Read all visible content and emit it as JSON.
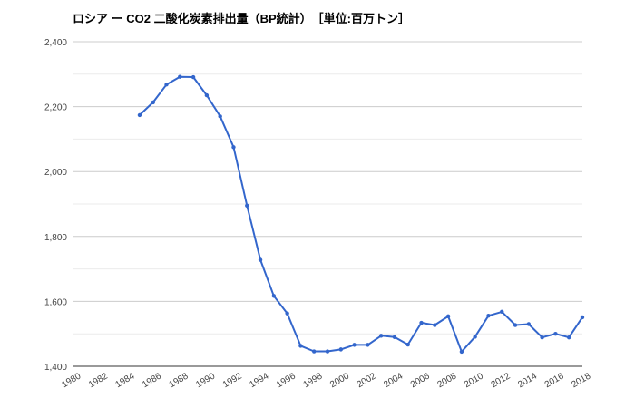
{
  "chart_data": {
    "type": "line",
    "title": "ロシア ー CO2 二酸化炭素排出量（BP統計）　［単位:百万トン］",
    "xlabel": "",
    "ylabel": "",
    "xlim": [
      1980,
      2018
    ],
    "ylim": [
      1400,
      2400
    ],
    "grid": true,
    "legend": "none",
    "x_tick_labels": [
      "1980",
      "1982",
      "1984",
      "1986",
      "1988",
      "1990",
      "1992",
      "1994",
      "1996",
      "1998",
      "2000",
      "2002",
      "2004",
      "2006",
      "2008",
      "2010",
      "2012",
      "2014",
      "2016",
      "2018"
    ],
    "y_tick_labels": [
      "1,400",
      "1,600",
      "1,800",
      "2,000",
      "2,200",
      "2,400"
    ],
    "series": [
      {
        "color": "#3366cc",
        "x": [
          1985,
          1986,
          1987,
          1988,
          1989,
          1990,
          1991,
          1992,
          1993,
          1994,
          1995,
          1996,
          1997,
          1998,
          1999,
          2000,
          2001,
          2002,
          2003,
          2004,
          2005,
          2006,
          2007,
          2008,
          2009,
          2010,
          2011,
          2012,
          2013,
          2014,
          2015,
          2016,
          2017,
          2018
        ],
        "values": [
          2174,
          2213,
          2268,
          2292,
          2291,
          2235,
          2170,
          2075,
          1895,
          1728,
          1617,
          1563,
          1463,
          1446,
          1446,
          1452,
          1466,
          1466,
          1494,
          1490,
          1467,
          1534,
          1527,
          1554,
          1445,
          1491,
          1556,
          1568,
          1527,
          1530,
          1489,
          1500,
          1489,
          1551
        ]
      }
    ]
  }
}
